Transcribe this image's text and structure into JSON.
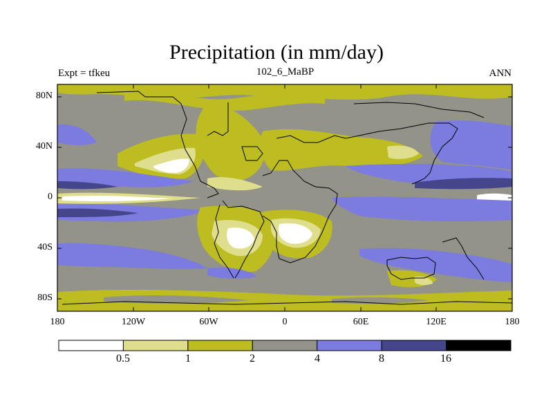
{
  "title": "Precipitation (in mm/day)",
  "left_label": "Expt = tfkeu",
  "center_label": "102_6_MaBP",
  "right_label": "ANN",
  "y_ticks": [
    "80N",
    "40N",
    "0",
    "40S",
    "80S"
  ],
  "x_ticks": [
    "180",
    "120W",
    "60W",
    "0",
    "60E",
    "120E",
    "180"
  ],
  "colorbar": {
    "labels": [
      "0.5",
      "1",
      "2",
      "4",
      "8",
      "16"
    ],
    "colors": [
      "#ffffff",
      "#dede8c",
      "#bdbd22",
      "#93938a",
      "#7b7be0",
      "#45458c",
      "#000000"
    ]
  }
}
